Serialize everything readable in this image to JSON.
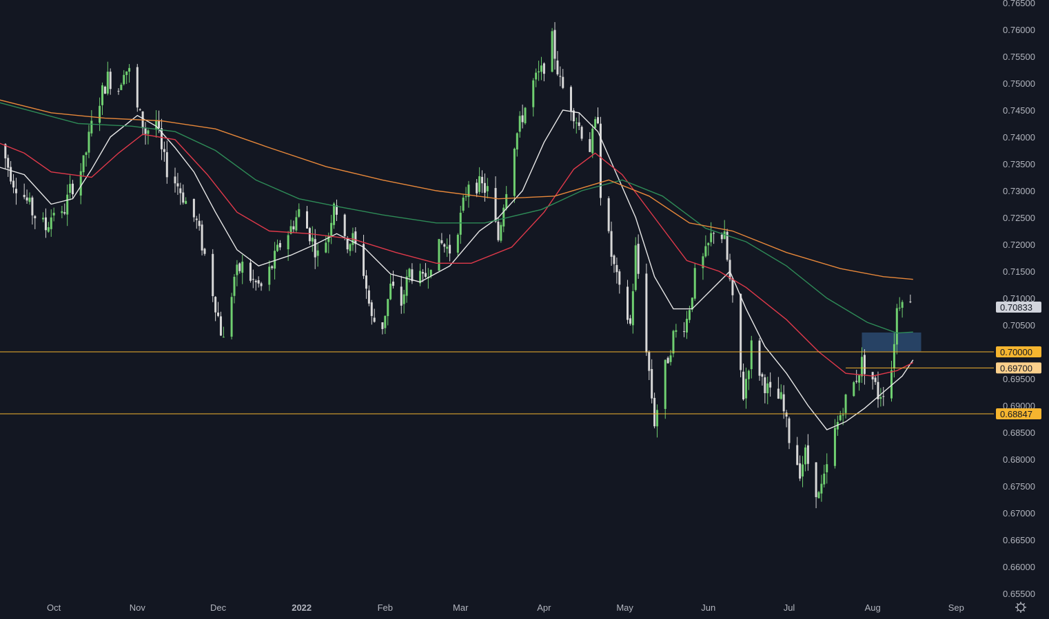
{
  "chart_data": {
    "type": "line",
    "symbol_context": "candlestick price chart with moving averages",
    "y_ticks": [
      "0.76500",
      "0.76000",
      "0.75500",
      "0.75000",
      "0.74500",
      "0.74000",
      "0.73500",
      "0.73000",
      "0.72500",
      "0.72000",
      "0.71500",
      "0.71000",
      "0.70500",
      "0.70000",
      "0.69500",
      "0.69000",
      "0.68500",
      "0.68000",
      "0.67500",
      "0.67000",
      "0.66500",
      "0.66000",
      "0.65500"
    ],
    "ylim": [
      0.6545,
      0.7655
    ],
    "x_ticks": [
      {
        "label": "Oct",
        "date": "2021-10-01"
      },
      {
        "label": "Nov",
        "date": "2021-11-01"
      },
      {
        "label": "Dec",
        "date": "2021-12-01"
      },
      {
        "label": "2022",
        "date": "2022-01-01",
        "bold": true
      },
      {
        "label": "Feb",
        "date": "2022-02-01"
      },
      {
        "label": "Mar",
        "date": "2022-03-01"
      },
      {
        "label": "Apr",
        "date": "2022-04-01"
      },
      {
        "label": "May",
        "date": "2022-05-01"
      },
      {
        "label": "Jun",
        "date": "2022-06-01"
      },
      {
        "label": "Jul",
        "date": "2022-07-01"
      },
      {
        "label": "Aug",
        "date": "2022-08-01"
      },
      {
        "label": "Sep",
        "date": "2022-09-01"
      }
    ],
    "xlim": [
      "2021-09-11",
      "2022-09-15"
    ],
    "colors": {
      "background": "#131722",
      "axis_text": "#b2b5be",
      "candle_up": "#6fcf70",
      "candle_down": "#d8d8d8",
      "level_line": "#f5b52f",
      "zone": "#2c4a70"
    },
    "current_price": {
      "label": "0.70833",
      "value": 0.70833,
      "color": "#d1d4dc"
    },
    "horizontal_levels": [
      {
        "label": "0.70000",
        "value": 0.7,
        "from": "2021-09-11"
      },
      {
        "label": "0.69700",
        "value": 0.697,
        "from": "2022-07-22",
        "tag_color": "#fbd08c"
      },
      {
        "label": "0.68847",
        "value": 0.68847,
        "from": "2021-09-11"
      }
    ],
    "zone": {
      "x": [
        "2022-07-28",
        "2022-08-19"
      ],
      "y": [
        0.7001,
        0.7036
      ]
    },
    "anchors": [
      [
        "2021-09-10",
        0.7385
      ],
      [
        "2021-09-13",
        0.736
      ],
      [
        "2021-09-16",
        0.7318
      ],
      [
        "2021-09-20",
        0.729
      ],
      [
        "2021-09-23",
        0.726
      ],
      [
        "2021-09-28",
        0.723
      ],
      [
        "2021-10-01",
        0.7265
      ],
      [
        "2021-10-04",
        0.725
      ],
      [
        "2021-10-07",
        0.73
      ],
      [
        "2021-10-12",
        0.735
      ],
      [
        "2021-10-15",
        0.742
      ],
      [
        "2021-10-18",
        0.747
      ],
      [
        "2021-10-21",
        0.751
      ],
      [
        "2021-10-25",
        0.749
      ],
      [
        "2021-10-27",
        0.753
      ],
      [
        "2021-10-29",
        0.752
      ],
      [
        "2021-11-01",
        0.745
      ],
      [
        "2021-11-04",
        0.741
      ],
      [
        "2021-11-08",
        0.743
      ],
      [
        "2021-11-10",
        0.737
      ],
      [
        "2021-11-12",
        0.734
      ],
      [
        "2021-11-16",
        0.731
      ],
      [
        "2021-11-19",
        0.728
      ],
      [
        "2021-11-23",
        0.724
      ],
      [
        "2021-11-26",
        0.718
      ],
      [
        "2021-11-30",
        0.709
      ],
      [
        "2021-12-02",
        0.704
      ],
      [
        "2021-12-03",
        0.702
      ],
      [
        "2021-12-07",
        0.714
      ],
      [
        "2021-12-10",
        0.716
      ],
      [
        "2021-12-14",
        0.713
      ],
      [
        "2021-12-17",
        0.712
      ],
      [
        "2021-12-21",
        0.716
      ],
      [
        "2021-12-24",
        0.72
      ],
      [
        "2021-12-28",
        0.723
      ],
      [
        "2021-12-31",
        0.726
      ],
      [
        "2022-01-04",
        0.722
      ],
      [
        "2022-01-07",
        0.718
      ],
      [
        "2022-01-11",
        0.722
      ],
      [
        "2022-01-13",
        0.7285
      ],
      [
        "2022-01-17",
        0.72
      ],
      [
        "2022-01-20",
        0.721
      ],
      [
        "2022-01-24",
        0.715
      ],
      [
        "2022-01-27",
        0.706
      ],
      [
        "2022-01-31",
        0.705
      ],
      [
        "2022-02-03",
        0.712
      ],
      [
        "2022-02-07",
        0.709
      ],
      [
        "2022-02-10",
        0.715
      ],
      [
        "2022-02-15",
        0.713
      ],
      [
        "2022-02-18",
        0.717
      ],
      [
        "2022-02-22",
        0.72
      ],
      [
        "2022-02-25",
        0.719
      ],
      [
        "2022-03-01",
        0.725
      ],
      [
        "2022-03-04",
        0.732
      ],
      [
        "2022-03-08",
        0.731
      ],
      [
        "2022-03-11",
        0.73
      ],
      [
        "2022-03-15",
        0.721
      ],
      [
        "2022-03-17",
        0.728
      ],
      [
        "2022-03-21",
        0.739
      ],
      [
        "2022-03-24",
        0.744
      ],
      [
        "2022-03-28",
        0.75
      ],
      [
        "2022-03-31",
        0.752
      ],
      [
        "2022-04-04",
        0.758
      ],
      [
        "2022-04-07",
        0.75
      ],
      [
        "2022-04-11",
        0.746
      ],
      [
        "2022-04-14",
        0.742
      ],
      [
        "2022-04-18",
        0.738
      ],
      [
        "2022-04-21",
        0.744
      ],
      [
        "2022-04-22",
        0.73
      ],
      [
        "2022-04-26",
        0.718
      ],
      [
        "2022-04-29",
        0.711
      ],
      [
        "2022-05-03",
        0.705
      ],
      [
        "2022-05-05",
        0.719
      ],
      [
        "2022-05-09",
        0.701
      ],
      [
        "2022-05-12",
        0.687
      ],
      [
        "2022-05-16",
        0.697
      ],
      [
        "2022-05-19",
        0.703
      ],
      [
        "2022-05-24",
        0.706
      ],
      [
        "2022-05-27",
        0.714
      ],
      [
        "2022-05-31",
        0.718
      ],
      [
        "2022-06-03",
        0.723
      ],
      [
        "2022-06-07",
        0.721
      ],
      [
        "2022-06-10",
        0.709
      ],
      [
        "2022-06-14",
        0.692
      ],
      [
        "2022-06-17",
        0.701
      ],
      [
        "2022-06-21",
        0.695
      ],
      [
        "2022-06-24",
        0.692
      ],
      [
        "2022-06-28",
        0.691
      ],
      [
        "2022-07-01",
        0.684
      ],
      [
        "2022-07-05",
        0.678
      ],
      [
        "2022-07-07",
        0.681
      ],
      [
        "2022-07-12",
        0.673
      ],
      [
        "2022-07-14",
        0.676
      ],
      [
        "2022-07-18",
        0.685
      ],
      [
        "2022-07-21",
        0.69
      ],
      [
        "2022-07-25",
        0.694
      ],
      [
        "2022-07-28",
        0.698
      ],
      [
        "2022-08-01",
        0.695
      ],
      [
        "2022-08-03",
        0.692
      ],
      [
        "2022-08-05",
        0.693
      ],
      [
        "2022-08-08",
        0.697
      ],
      [
        "2022-08-10",
        0.708
      ],
      [
        "2022-08-12",
        0.711
      ],
      [
        "2022-08-15",
        0.7085
      ]
    ],
    "series": [
      {
        "color": "#e8e8e8",
        "values": [
          [
            "2021-09-10",
            0.7345
          ],
          [
            "2021-09-20",
            0.733
          ],
          [
            "2021-09-30",
            0.7275
          ],
          [
            "2021-10-08",
            0.7285
          ],
          [
            "2021-10-15",
            0.734
          ],
          [
            "2021-10-22",
            0.74
          ],
          [
            "2021-11-01",
            0.744
          ],
          [
            "2021-11-08",
            0.742
          ],
          [
            "2021-11-15",
            0.738
          ],
          [
            "2021-11-22",
            0.7335
          ],
          [
            "2021-11-30",
            0.726
          ],
          [
            "2021-12-08",
            0.719
          ],
          [
            "2021-12-16",
            0.716
          ],
          [
            "2021-12-28",
            0.718
          ],
          [
            "2022-01-06",
            0.72
          ],
          [
            "2022-01-14",
            0.722
          ],
          [
            "2022-01-24",
            0.7195
          ],
          [
            "2022-02-03",
            0.7145
          ],
          [
            "2022-02-14",
            0.713
          ],
          [
            "2022-02-25",
            0.716
          ],
          [
            "2022-03-08",
            0.7225
          ],
          [
            "2022-03-15",
            0.725
          ],
          [
            "2022-03-24",
            0.73
          ],
          [
            "2022-04-01",
            0.739
          ],
          [
            "2022-04-08",
            0.745
          ],
          [
            "2022-04-14",
            0.7445
          ],
          [
            "2022-04-21",
            0.741
          ],
          [
            "2022-04-28",
            0.733
          ],
          [
            "2022-05-05",
            0.725
          ],
          [
            "2022-05-12",
            0.714
          ],
          [
            "2022-05-19",
            0.708
          ],
          [
            "2022-05-26",
            0.708
          ],
          [
            "2022-06-03",
            0.712
          ],
          [
            "2022-06-09",
            0.715
          ],
          [
            "2022-06-15",
            0.708
          ],
          [
            "2022-06-22",
            0.701
          ],
          [
            "2022-06-30",
            0.696
          ],
          [
            "2022-07-08",
            0.69
          ],
          [
            "2022-07-15",
            0.6855
          ],
          [
            "2022-07-22",
            0.687
          ],
          [
            "2022-07-29",
            0.6895
          ],
          [
            "2022-08-05",
            0.6925
          ],
          [
            "2022-08-12",
            0.6955
          ],
          [
            "2022-08-16",
            0.6985
          ]
        ]
      },
      {
        "color": "#e0394a",
        "values": [
          [
            "2021-09-10",
            0.739
          ],
          [
            "2021-09-20",
            0.737
          ],
          [
            "2021-09-30",
            0.7335
          ],
          [
            "2021-10-15",
            0.7325
          ],
          [
            "2021-10-25",
            0.737
          ],
          [
            "2021-11-03",
            0.7405
          ],
          [
            "2021-11-15",
            0.7395
          ],
          [
            "2021-11-27",
            0.733
          ],
          [
            "2021-12-08",
            0.726
          ],
          [
            "2021-12-20",
            0.7225
          ],
          [
            "2022-01-04",
            0.722
          ],
          [
            "2022-01-20",
            0.721
          ],
          [
            "2022-02-05",
            0.7185
          ],
          [
            "2022-02-20",
            0.7165
          ],
          [
            "2022-03-05",
            0.7165
          ],
          [
            "2022-03-20",
            0.7195
          ],
          [
            "2022-04-01",
            0.726
          ],
          [
            "2022-04-12",
            0.734
          ],
          [
            "2022-04-20",
            0.737
          ],
          [
            "2022-04-30",
            0.733
          ],
          [
            "2022-05-12",
            0.725
          ],
          [
            "2022-05-24",
            0.717
          ],
          [
            "2022-06-05",
            0.715
          ],
          [
            "2022-06-15",
            0.712
          ],
          [
            "2022-06-30",
            0.706
          ],
          [
            "2022-07-12",
            0.7
          ],
          [
            "2022-07-22",
            0.696
          ],
          [
            "2022-08-01",
            0.6955
          ],
          [
            "2022-08-10",
            0.6965
          ],
          [
            "2022-08-16",
            0.698
          ]
        ]
      },
      {
        "color": "#2e8b57",
        "values": [
          [
            "2021-09-10",
            0.7465
          ],
          [
            "2021-09-25",
            0.7445
          ],
          [
            "2021-10-10",
            0.7425
          ],
          [
            "2021-10-30",
            0.742
          ],
          [
            "2021-11-15",
            0.741
          ],
          [
            "2021-11-30",
            0.7375
          ],
          [
            "2021-12-15",
            0.732
          ],
          [
            "2021-12-31",
            0.7285
          ],
          [
            "2022-01-15",
            0.727
          ],
          [
            "2022-01-31",
            0.7255
          ],
          [
            "2022-02-20",
            0.724
          ],
          [
            "2022-03-10",
            0.724
          ],
          [
            "2022-03-31",
            0.7265
          ],
          [
            "2022-04-15",
            0.73
          ],
          [
            "2022-04-30",
            0.732
          ],
          [
            "2022-05-15",
            0.729
          ],
          [
            "2022-05-31",
            0.723
          ],
          [
            "2022-06-15",
            0.7205
          ],
          [
            "2022-06-30",
            0.716
          ],
          [
            "2022-07-15",
            0.71
          ],
          [
            "2022-07-30",
            0.7055
          ],
          [
            "2022-08-10",
            0.7035
          ],
          [
            "2022-08-16",
            0.7037
          ]
        ]
      },
      {
        "color": "#e8883a",
        "values": [
          [
            "2021-09-10",
            0.747
          ],
          [
            "2021-09-30",
            0.7445
          ],
          [
            "2021-10-20",
            0.7435
          ],
          [
            "2021-11-10",
            0.743
          ],
          [
            "2021-11-30",
            0.7415
          ],
          [
            "2021-12-20",
            0.738
          ],
          [
            "2022-01-10",
            0.7345
          ],
          [
            "2022-01-31",
            0.732
          ],
          [
            "2022-02-20",
            0.73
          ],
          [
            "2022-03-15",
            0.7285
          ],
          [
            "2022-04-05",
            0.729
          ],
          [
            "2022-04-25",
            0.732
          ],
          [
            "2022-05-10",
            0.729
          ],
          [
            "2022-05-25",
            0.724
          ],
          [
            "2022-06-10",
            0.7225
          ],
          [
            "2022-06-30",
            0.7185
          ],
          [
            "2022-07-20",
            0.7155
          ],
          [
            "2022-08-05",
            0.714
          ],
          [
            "2022-08-16",
            0.7135
          ]
        ]
      }
    ]
  }
}
